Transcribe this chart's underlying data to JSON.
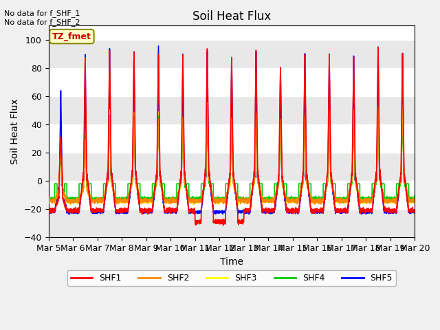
{
  "title": "Soil Heat Flux",
  "ylabel": "Soil Heat Flux",
  "xlabel": "Time",
  "annotation_text": "No data for f_SHF_1\nNo data for f_SHF_2",
  "box_label": "TZ_fmet",
  "ylim": [
    -40,
    110
  ],
  "yticks": [
    -40,
    -20,
    0,
    20,
    40,
    60,
    80,
    100
  ],
  "series_colors": {
    "SHF1": "#ff0000",
    "SHF2": "#ff8800",
    "SHF3": "#ffff00",
    "SHF4": "#00cc00",
    "SHF5": "#0000ff"
  },
  "legend_labels": [
    "SHF1",
    "SHF2",
    "SHF3",
    "SHF4",
    "SHF5"
  ],
  "x_tick_labels": [
    "Mar 5",
    "Mar 6",
    "Mar 7",
    "Mar 8",
    "Mar 9",
    "Mar 10",
    "Mar 11",
    "Mar 12",
    "Mar 13",
    "Mar 14",
    "Mar 15",
    "Mar 16",
    "Mar 17",
    "Mar 18",
    "Mar 19",
    "Mar 20"
  ],
  "figsize": [
    6.4,
    4.8
  ],
  "dpi": 100,
  "fig_facecolor": "#f0f0f0",
  "plot_facecolor": "#ffffff",
  "grid_band_color": "#e8e8e8"
}
